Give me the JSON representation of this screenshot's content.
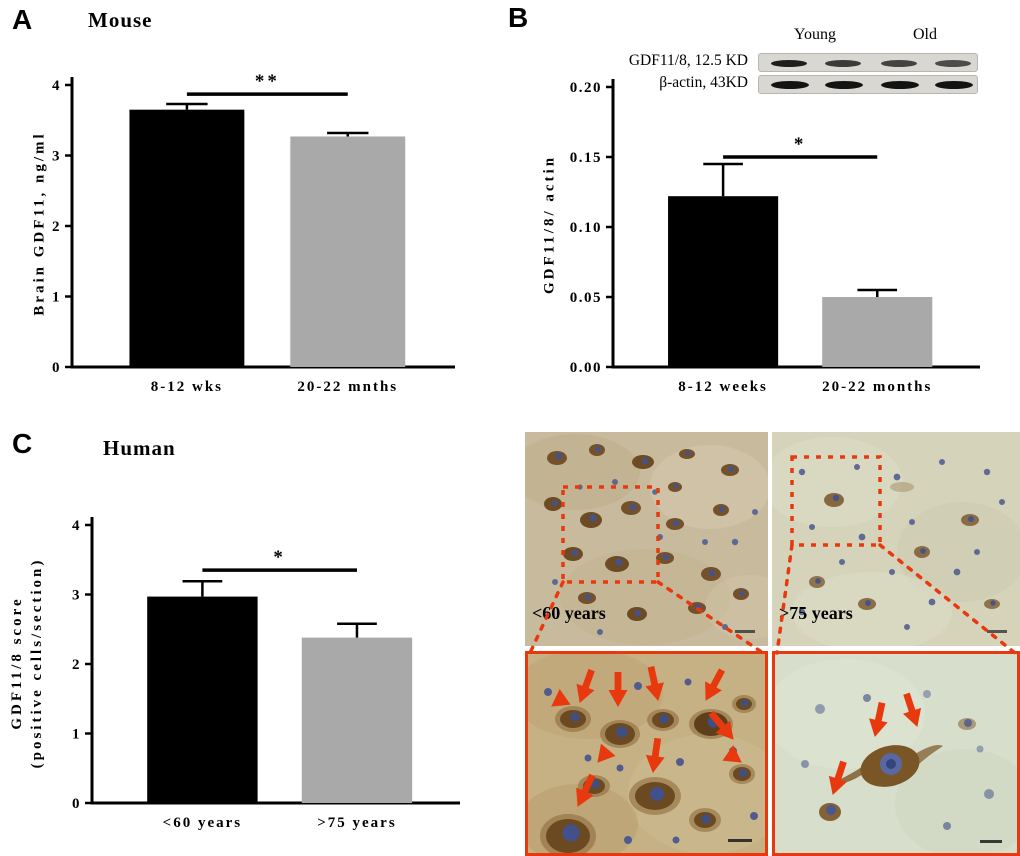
{
  "colors": {
    "bar_black": "#000000",
    "bar_gray": "#a9a9a9",
    "annotation_red": "#e8380d"
  },
  "panels": {
    "a": {
      "letter": "A",
      "title": "Mouse"
    },
    "b": {
      "letter": "B"
    },
    "c": {
      "letter": "C",
      "title": "Human"
    }
  },
  "chart_data": [
    {
      "id": "mouse-brain-gdf11",
      "type": "bar",
      "panel": "A",
      "title": "Mouse",
      "ylabel": "Brain GDF11, ng/ml",
      "categories": [
        "8-12 wks",
        "20-22 mnths"
      ],
      "values": [
        3.65,
        3.27
      ],
      "errors": [
        0.08,
        0.05
      ],
      "ylim": [
        0,
        4
      ],
      "yticks": [
        "0",
        "1",
        "2",
        "3",
        "4"
      ],
      "bar_colors": [
        "#000000",
        "#a9a9a9"
      ],
      "significance": "**",
      "sig_line_y": 3.87,
      "legend": "none",
      "grid": false
    },
    {
      "id": "gdf11-8-actin-ratio",
      "type": "bar",
      "panel": "B",
      "title": "",
      "ylabel": "GDF11/8/ actin",
      "categories": [
        "8-12 weeks",
        "20-22 months"
      ],
      "values": [
        0.122,
        0.05
      ],
      "errors": [
        0.023,
        0.005
      ],
      "ylim": [
        0,
        0.2
      ],
      "yticks": [
        "0.00",
        "0.05",
        "0.10",
        "0.15",
        "0.20"
      ],
      "bar_colors": [
        "#000000",
        "#a9a9a9"
      ],
      "significance": "*",
      "sig_line_y": 0.15,
      "legend": "none",
      "grid": false
    },
    {
      "id": "human-gdf11-8-score",
      "type": "bar",
      "panel": "C",
      "title": "Human",
      "ylabel_line1": "GDF11/8 score",
      "ylabel_line2": "(positive cells/section)",
      "categories": [
        "<60 years",
        ">75 years"
      ],
      "values": [
        2.97,
        2.38
      ],
      "errors": [
        0.22,
        0.2
      ],
      "ylim": [
        0,
        4
      ],
      "yticks": [
        "0",
        "1",
        "2",
        "3",
        "4"
      ],
      "bar_colors": [
        "#000000",
        "#a9a9a9"
      ],
      "significance": "*",
      "sig_line_y": 3.35,
      "legend": "none",
      "grid": false
    }
  ],
  "western_blot": {
    "col_labels": [
      "Young",
      "Old"
    ],
    "row_labels": [
      "GDF11/8, 12.5 KD",
      "β-actin, 43KD"
    ]
  },
  "micrographs": {
    "top_left_label": "<60 years",
    "top_right_label": ">75 years"
  }
}
